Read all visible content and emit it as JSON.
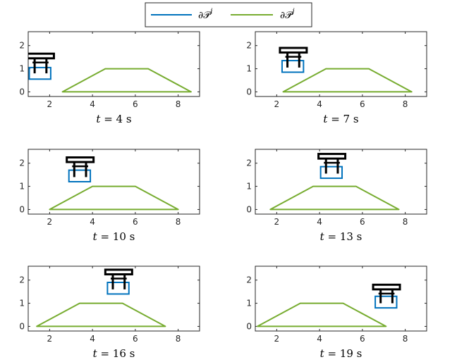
{
  "legend": [
    {
      "label": "∂𝒫",
      "sup": "i",
      "color": "#0072BD"
    },
    {
      "label": "∂𝒫",
      "sup": "j",
      "color": "#77AC30"
    }
  ],
  "colors": {
    "blue": "#0072BD",
    "green": "#77AC30",
    "robot": "#000000",
    "axis": "#262626"
  },
  "chart_data": [
    {
      "type": "line",
      "caption": {
        "var": "t",
        "rest": " = 4 s"
      },
      "xlim": [
        1,
        9
      ],
      "ylim": [
        -0.2,
        2.6
      ],
      "xticks": [
        2,
        4,
        6,
        8
      ],
      "yticks": [
        0,
        1,
        2
      ],
      "trapezoid": {
        "x": [
          2.6,
          4.6,
          6.6,
          8.6
        ],
        "y": [
          0,
          1,
          1,
          0
        ]
      },
      "blue_box": {
        "x": [
          1.05,
          2.05
        ],
        "y": [
          0.55,
          1.05
        ]
      },
      "robot": {
        "x": [
          0.95,
          2.2
        ],
        "y": [
          1.45,
          1.65
        ],
        "legs_x": [
          1.3,
          1.85
        ],
        "legs_y": [
          0.8,
          1.45
        ]
      }
    },
    {
      "type": "line",
      "caption": {
        "var": "t",
        "rest": " = 7 s"
      },
      "xlim": [
        1,
        9
      ],
      "ylim": [
        -0.2,
        2.6
      ],
      "xticks": [
        2,
        4,
        6,
        8
      ],
      "yticks": [
        0,
        1,
        2
      ],
      "trapezoid": {
        "x": [
          2.3,
          4.3,
          6.3,
          8.3
        ],
        "y": [
          0,
          1,
          1,
          0
        ]
      },
      "blue_box": {
        "x": [
          2.25,
          3.25
        ],
        "y": [
          0.85,
          1.35
        ]
      },
      "robot": {
        "x": [
          2.15,
          3.4
        ],
        "y": [
          1.7,
          1.9
        ],
        "legs_x": [
          2.5,
          3.05
        ],
        "legs_y": [
          1.05,
          1.7
        ]
      }
    },
    {
      "type": "line",
      "caption": {
        "var": "t",
        "rest": " = 10 s"
      },
      "xlim": [
        1,
        9
      ],
      "ylim": [
        -0.2,
        2.6
      ],
      "xticks": [
        2,
        4,
        6,
        8
      ],
      "yticks": [
        0,
        1,
        2
      ],
      "trapezoid": {
        "x": [
          2.0,
          4.0,
          6.0,
          8.0
        ],
        "y": [
          0,
          1,
          1,
          0
        ]
      },
      "blue_box": {
        "x": [
          2.9,
          3.9
        ],
        "y": [
          1.2,
          1.7
        ]
      },
      "robot": {
        "x": [
          2.8,
          4.05
        ],
        "y": [
          2.05,
          2.25
        ],
        "legs_x": [
          3.15,
          3.7
        ],
        "legs_y": [
          1.4,
          2.05
        ]
      }
    },
    {
      "type": "line",
      "caption": {
        "var": "t",
        "rest": " = 13 s"
      },
      "xlim": [
        1,
        9
      ],
      "ylim": [
        -0.2,
        2.6
      ],
      "xticks": [
        2,
        4,
        6,
        8
      ],
      "yticks": [
        0,
        1,
        2
      ],
      "trapezoid": {
        "x": [
          1.7,
          3.7,
          5.7,
          7.7
        ],
        "y": [
          0,
          1,
          1,
          0
        ]
      },
      "blue_box": {
        "x": [
          4.05,
          5.05
        ],
        "y": [
          1.35,
          1.85
        ]
      },
      "robot": {
        "x": [
          3.95,
          5.2
        ],
        "y": [
          2.2,
          2.4
        ],
        "legs_x": [
          4.3,
          4.85
        ],
        "legs_y": [
          1.55,
          2.2
        ]
      }
    },
    {
      "type": "line",
      "caption": {
        "var": "t",
        "rest": " = 16 s"
      },
      "xlim": [
        1,
        9
      ],
      "ylim": [
        -0.2,
        2.6
      ],
      "xticks": [
        2,
        4,
        6,
        8
      ],
      "yticks": [
        0,
        1,
        2
      ],
      "trapezoid": {
        "x": [
          1.4,
          3.4,
          5.4,
          7.4
        ],
        "y": [
          0,
          1,
          1,
          0
        ]
      },
      "blue_box": {
        "x": [
          4.7,
          5.7
        ],
        "y": [
          1.4,
          1.9
        ]
      },
      "robot": {
        "x": [
          4.6,
          5.85
        ],
        "y": [
          2.25,
          2.45
        ],
        "legs_x": [
          4.95,
          5.5
        ],
        "legs_y": [
          1.6,
          2.25
        ]
      }
    },
    {
      "type": "line",
      "caption": {
        "var": "t",
        "rest": " = 19 s"
      },
      "xlim": [
        1,
        9
      ],
      "ylim": [
        -0.2,
        2.6
      ],
      "xticks": [
        2,
        4,
        6,
        8
      ],
      "yticks": [
        0,
        1,
        2
      ],
      "trapezoid": {
        "x": [
          1.1,
          3.1,
          5.1,
          7.1
        ],
        "y": [
          0,
          1,
          1,
          0
        ]
      },
      "blue_box": {
        "x": [
          6.6,
          7.6
        ],
        "y": [
          0.8,
          1.3
        ]
      },
      "robot": {
        "x": [
          6.5,
          7.75
        ],
        "y": [
          1.6,
          1.8
        ],
        "legs_x": [
          6.85,
          7.4
        ],
        "legs_y": [
          1.0,
          1.6
        ]
      }
    }
  ]
}
